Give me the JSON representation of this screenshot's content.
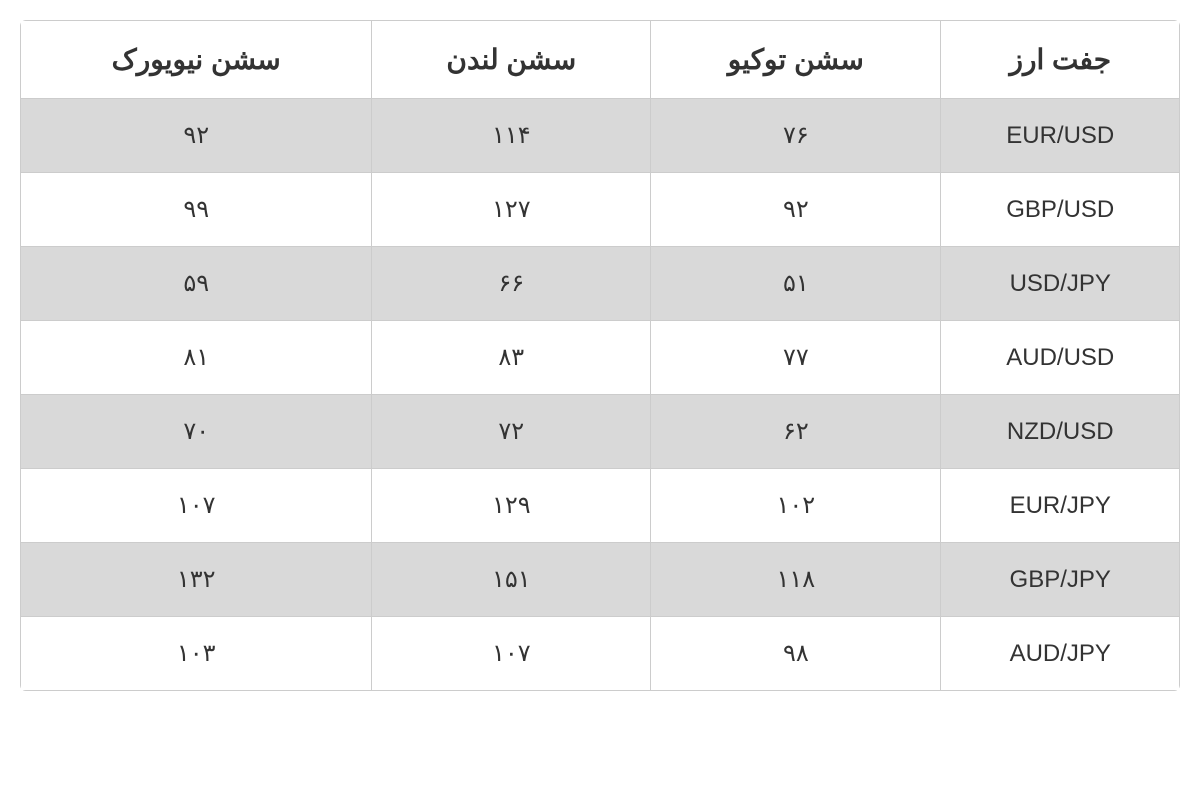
{
  "forex_table": {
    "type": "table",
    "columns": [
      "جفت ارز",
      "سشن توکیو",
      "سشن لندن",
      "سشن نیویورک"
    ],
    "column_alignment": [
      "center",
      "center",
      "center",
      "center"
    ],
    "rows": [
      {
        "pair": "EUR/USD",
        "tokyo": "۷۶",
        "london": "۱۱۴",
        "newyork": "۹۲"
      },
      {
        "pair": "GBP/USD",
        "tokyo": "۹۲",
        "london": "۱۲۷",
        "newyork": "۹۹"
      },
      {
        "pair": "USD/JPY",
        "tokyo": "۵۱",
        "london": "۶۶",
        "newyork": "۵۹"
      },
      {
        "pair": "AUD/USD",
        "tokyo": "۷۷",
        "london": "۸۳",
        "newyork": "۸۱"
      },
      {
        "pair": "NZD/USD",
        "tokyo": "۶۲",
        "london": "۷۲",
        "newyork": "۷۰"
      },
      {
        "pair": "EUR/JPY",
        "tokyo": "۱۰۲",
        "london": "۱۲۹",
        "newyork": "۱۰۷"
      },
      {
        "pair": "GBP/JPY",
        "tokyo": "۱۱۸",
        "london": "۱۵۱",
        "newyork": "۱۳۲"
      },
      {
        "pair": "AUD/JPY",
        "tokyo": "۹۸",
        "london": "۱۰۷",
        "newyork": "۱۰۳"
      }
    ],
    "header_background": "#ffffff",
    "odd_row_background": "#d9d9d9",
    "even_row_background": "#ffffff",
    "border_color": "#cccccc",
    "text_color": "#333333",
    "header_fontsize": 28,
    "cell_fontsize": 24,
    "font_family": "Tahoma"
  }
}
